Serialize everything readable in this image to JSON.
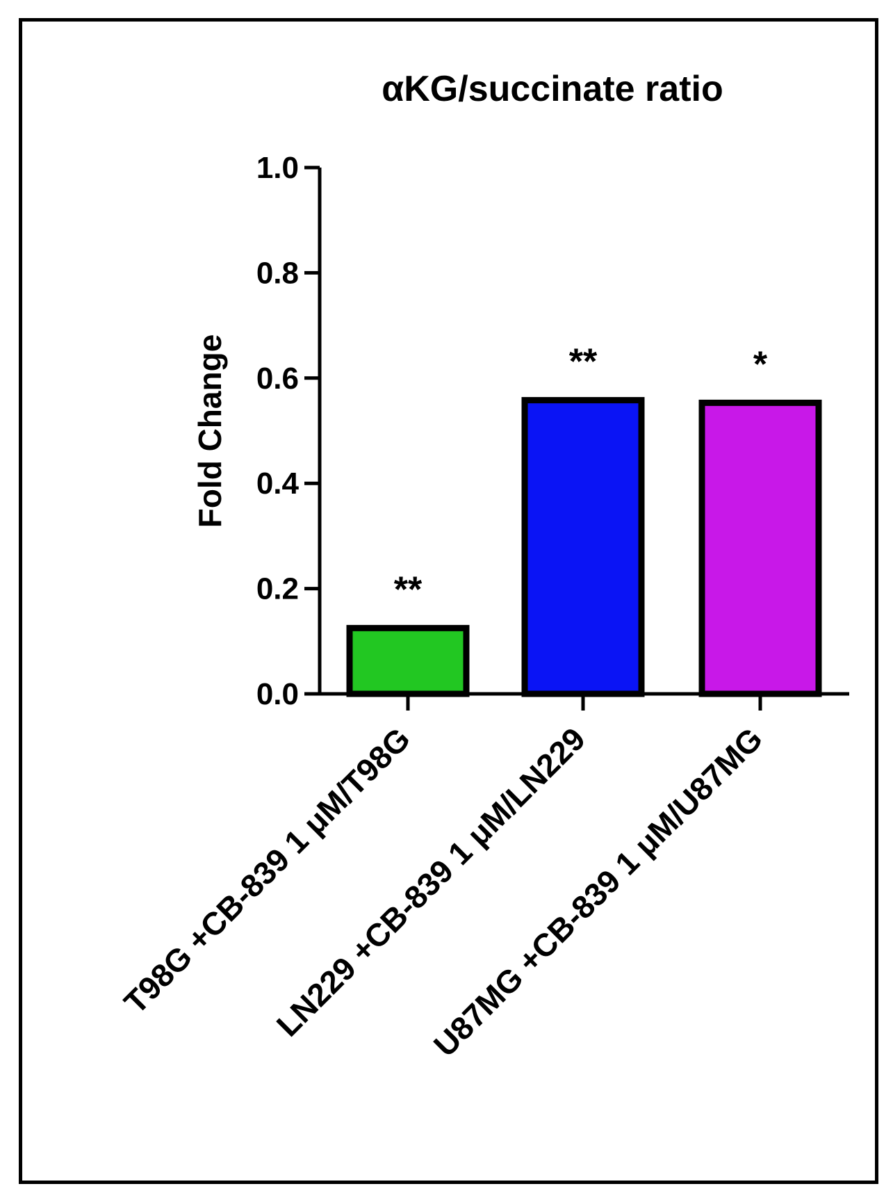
{
  "chart_data": {
    "type": "bar",
    "title": "αKG/succinate ratio",
    "ylabel": "Fold Change",
    "xlabel": "",
    "ylim": [
      0,
      1.0
    ],
    "yticks": [
      "0.0",
      "0.2",
      "0.4",
      "0.6",
      "0.8",
      "1.0"
    ],
    "categories": [
      "T98G +CB-839 1 μM/T98G",
      "LN229 +CB-839 1 μM/LN229",
      "U87MG +CB-839 1 μM/U87MG"
    ],
    "values": [
      0.125,
      0.558,
      0.553
    ],
    "colors": [
      "#22c722",
      "#0a14f5",
      "#c818e8"
    ],
    "annotations": [
      "**",
      "**",
      "*"
    ],
    "grid": false,
    "legend": "none"
  }
}
